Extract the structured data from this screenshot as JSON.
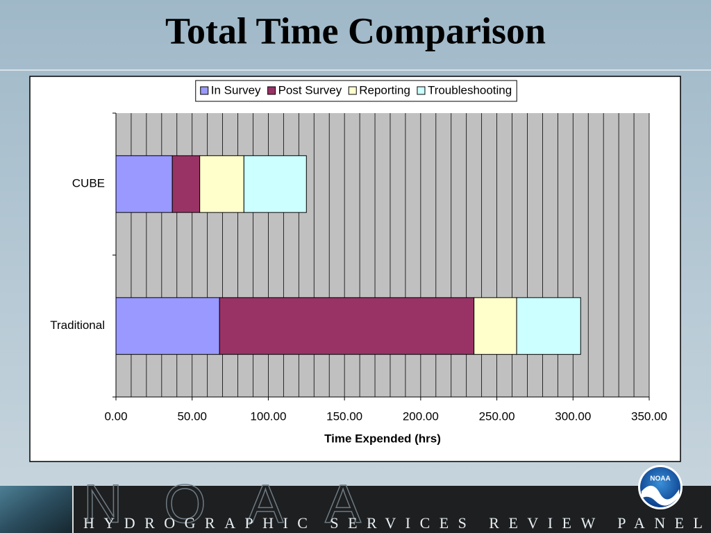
{
  "chart_data": {
    "type": "stacked-bar-horizontal",
    "title": "Total Time Comparison",
    "categories": [
      "CUBE",
      "Traditional"
    ],
    "series": [
      {
        "name": "In Survey",
        "color": "#9999ff",
        "values": [
          37,
          68
        ]
      },
      {
        "name": "Post Survey",
        "color": "#993366",
        "values": [
          18,
          167
        ]
      },
      {
        "name": "Reporting",
        "color": "#ffffcc",
        "values": [
          29,
          28
        ]
      },
      {
        "name": "Troubleshooting",
        "color": "#ccffff",
        "values": [
          41,
          42
        ]
      }
    ],
    "xlabel": "Time Expended (hrs)",
    "xlim": [
      0,
      350
    ],
    "xticks": [
      {
        "value": 0,
        "label": "0.00"
      },
      {
        "value": 50,
        "label": "50.00"
      },
      {
        "value": 100,
        "label": "100.00"
      },
      {
        "value": 150,
        "label": "150.00"
      },
      {
        "value": 200,
        "label": "200.00"
      },
      {
        "value": 250,
        "label": "250.00"
      },
      {
        "value": 300,
        "label": "300.00"
      },
      {
        "value": 350,
        "label": "350.00"
      }
    ],
    "minor_xticks": [
      10,
      20,
      30,
      40,
      60,
      70,
      80,
      90,
      110,
      120,
      130,
      140,
      160,
      170,
      180,
      190,
      210,
      220,
      230,
      240,
      260,
      270,
      280,
      290,
      310,
      320,
      330,
      340
    ],
    "grid": true,
    "plot_background": "#c0c0c0",
    "legend": "top"
  },
  "slide": {
    "watermark": "NOAA",
    "logo": "NOAA",
    "banner": "HYDROGRAPHIC SERVICES REVIEW PANEL"
  }
}
